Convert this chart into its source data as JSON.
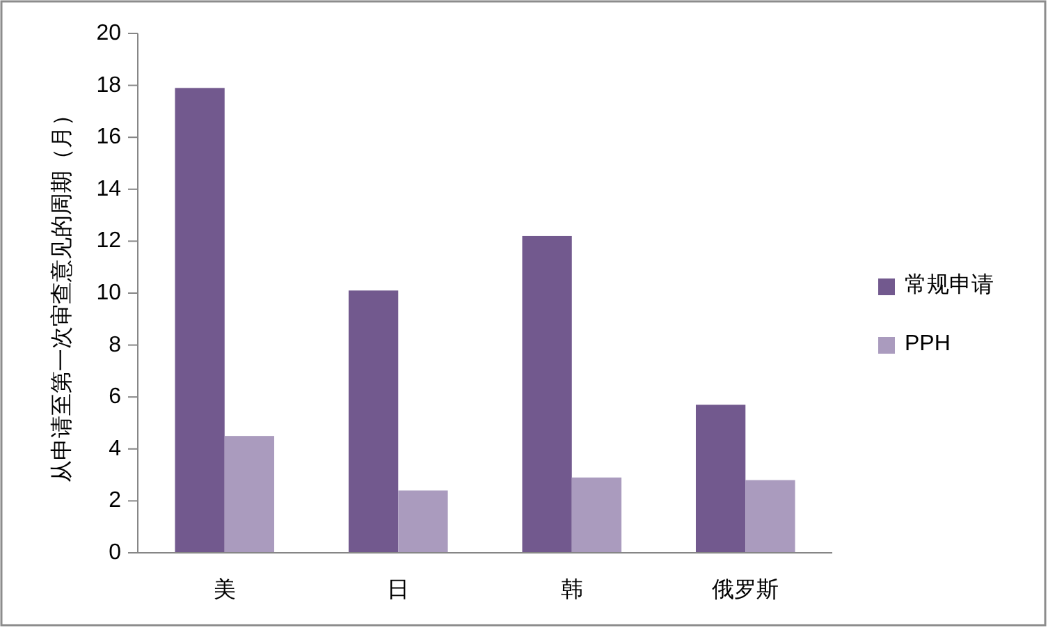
{
  "chart_data": {
    "type": "bar",
    "ylabel": "从申请至第一次审查意见的周期（月）",
    "categories": [
      "美",
      "日",
      "韩",
      "俄罗斯"
    ],
    "series": [
      {
        "name": "常规申请",
        "color": "#72598e",
        "values": [
          17.9,
          10.1,
          12.2,
          5.7
        ]
      },
      {
        "name": "PPH",
        "color": "#aa9bbe",
        "values": [
          4.5,
          2.4,
          2.9,
          2.8
        ]
      }
    ],
    "ylim": [
      0,
      20
    ],
    "yticks": [
      0,
      2,
      4,
      6,
      8,
      10,
      12,
      14,
      16,
      18,
      20
    ],
    "legend": "right"
  }
}
